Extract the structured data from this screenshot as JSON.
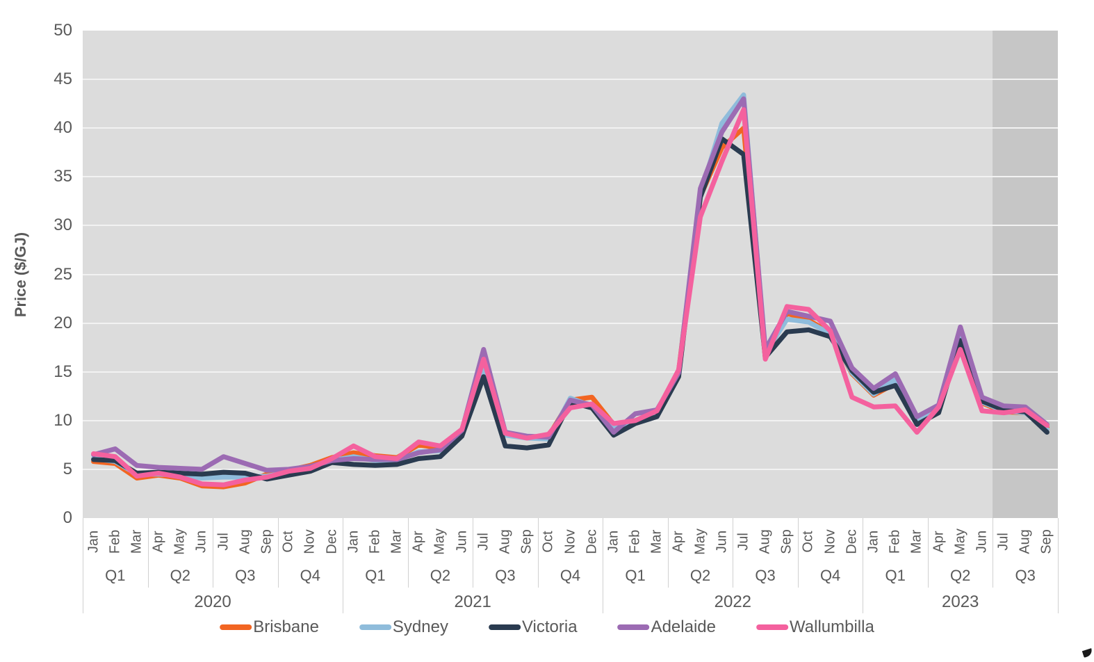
{
  "y_axis": {
    "title": "Price ($/GJ)",
    "tick_values": [
      0,
      5,
      10,
      15,
      20,
      25,
      30,
      35,
      40,
      45,
      50
    ],
    "text_color": "#595959"
  },
  "x_axis": {
    "years": [
      {
        "label": "2020",
        "quarters": [
          {
            "label": "Q1",
            "months": [
              "Jan",
              "Feb",
              "Mar"
            ]
          },
          {
            "label": "Q2",
            "months": [
              "Apr",
              "May",
              "Jun"
            ]
          },
          {
            "label": "Q3",
            "months": [
              "Jul",
              "Aug",
              "Sep"
            ]
          },
          {
            "label": "Q4",
            "months": [
              "Oct",
              "Nov",
              "Dec"
            ]
          }
        ]
      },
      {
        "label": "2021",
        "quarters": [
          {
            "label": "Q1",
            "months": [
              "Jan",
              "Feb",
              "Mar"
            ]
          },
          {
            "label": "Q2",
            "months": [
              "Apr",
              "May",
              "Jun"
            ]
          },
          {
            "label": "Q3",
            "months": [
              "Jul",
              "Aug",
              "Sep"
            ]
          },
          {
            "label": "Q4",
            "months": [
              "Oct",
              "Nov",
              "Dec"
            ]
          }
        ]
      },
      {
        "label": "2022",
        "quarters": [
          {
            "label": "Q1",
            "months": [
              "Jan",
              "Feb",
              "Mar"
            ]
          },
          {
            "label": "Q2",
            "months": [
              "Apr",
              "May",
              "Jun"
            ]
          },
          {
            "label": "Q3",
            "months": [
              "Jul",
              "Aug",
              "Sep"
            ]
          },
          {
            "label": "Q4",
            "months": [
              "Oct",
              "Nov",
              "Dec"
            ]
          }
        ]
      },
      {
        "label": "2023",
        "quarters": [
          {
            "label": "Q1",
            "months": [
              "Jan",
              "Feb",
              "Mar"
            ]
          },
          {
            "label": "Q2",
            "months": [
              "Apr",
              "May",
              "Jun"
            ]
          },
          {
            "label": "Q3",
            "months": [
              "Jul",
              "Aug",
              "Sep"
            ]
          }
        ]
      }
    ]
  },
  "legend": {
    "items": [
      {
        "label": "Brisbane",
        "color": "#f26522"
      },
      {
        "label": "Sydney",
        "color": "#8fbcdb"
      },
      {
        "label": "Victoria",
        "color": "#2a3b50"
      },
      {
        "label": "Adelaide",
        "color": "#9c6bb3"
      },
      {
        "label": "Wallumbilla",
        "color": "#f4619e"
      }
    ]
  },
  "plot": {
    "background_color": "#dcdcdc",
    "forecast_band_color": "#c6c6c6",
    "gridline_color": "#f2f2f2",
    "separator_color": "#d0d0d0",
    "forecast_band": {
      "start_month_index": 42,
      "end_month_index": 44
    }
  },
  "chart_data": {
    "type": "line",
    "title": "",
    "xlabel": "",
    "ylabel": "Price ($/GJ)",
    "ylim": [
      0,
      50
    ],
    "grid": true,
    "legend_position": "bottom",
    "x": [
      "Jan 2020",
      "Feb 2020",
      "Mar 2020",
      "Apr 2020",
      "May 2020",
      "Jun 2020",
      "Jul 2020",
      "Aug 2020",
      "Sep 2020",
      "Oct 2020",
      "Nov 2020",
      "Dec 2020",
      "Jan 2021",
      "Feb 2021",
      "Mar 2021",
      "Apr 2021",
      "May 2021",
      "Jun 2021",
      "Jul 2021",
      "Aug 2021",
      "Sep 2021",
      "Oct 2021",
      "Nov 2021",
      "Dec 2021",
      "Jan 2022",
      "Feb 2022",
      "Mar 2022",
      "Apr 2022",
      "May 2022",
      "Jun 2022",
      "Jul 2022",
      "Aug 2022",
      "Sep 2022",
      "Oct 2022",
      "Nov 2022",
      "Dec 2022",
      "Jan 2023",
      "Feb 2023",
      "Mar 2023",
      "Apr 2023",
      "May 2023",
      "Jun 2023",
      "Jul 2023",
      "Aug 2023",
      "Sep 2023"
    ],
    "shaded_region": {
      "from": "Jul 2023",
      "to": "Sep 2023",
      "meaning": "highlighted final quarter"
    },
    "series": [
      {
        "name": "Brisbane",
        "color": "#f26522",
        "values": [
          5.8,
          5.6,
          4.1,
          4.4,
          4.1,
          3.3,
          3.2,
          3.6,
          4.5,
          4.9,
          5.4,
          6.2,
          6.7,
          6.4,
          6.2,
          7.5,
          7.2,
          8.9,
          14.8,
          8.6,
          8.3,
          8.4,
          12.1,
          12.4,
          9.6,
          9.9,
          10.6,
          15.1,
          33.0,
          38.0,
          40.0,
          16.4,
          21.0,
          20.3,
          19.0,
          14.8,
          12.6,
          13.8,
          10.0,
          11.2,
          18.0,
          11.8,
          10.9,
          10.8,
          9.3
        ]
      },
      {
        "name": "Sydney",
        "color": "#8fbcdb",
        "values": [
          6.1,
          5.8,
          4.5,
          4.5,
          4.4,
          4.1,
          4.2,
          4.2,
          4.3,
          4.7,
          5.0,
          5.9,
          6.3,
          5.9,
          5.9,
          6.8,
          6.9,
          8.9,
          15.6,
          8.5,
          8.2,
          8.1,
          12.3,
          11.5,
          9.2,
          10.0,
          10.6,
          14.8,
          33.2,
          40.5,
          43.4,
          16.9,
          20.4,
          20.1,
          18.9,
          14.9,
          12.7,
          14.2,
          9.9,
          11.0,
          18.7,
          11.9,
          11.0,
          10.8,
          9.1
        ]
      },
      {
        "name": "Victoria",
        "color": "#2a3b50",
        "values": [
          6.0,
          5.9,
          4.6,
          4.7,
          4.6,
          4.5,
          4.7,
          4.6,
          4.0,
          4.4,
          4.8,
          5.7,
          5.5,
          5.4,
          5.5,
          6.1,
          6.3,
          8.4,
          14.5,
          7.4,
          7.2,
          7.5,
          11.9,
          11.3,
          8.5,
          9.7,
          10.4,
          14.5,
          32.9,
          38.9,
          37.3,
          16.5,
          19.1,
          19.3,
          18.6,
          15.1,
          12.9,
          13.6,
          9.6,
          10.8,
          18.2,
          12.0,
          11.1,
          10.9,
          8.8
        ]
      },
      {
        "name": "Adelaide",
        "color": "#9c6bb3",
        "values": [
          6.5,
          7.1,
          5.4,
          5.2,
          5.1,
          5.0,
          6.3,
          5.6,
          4.9,
          5.0,
          5.3,
          5.9,
          6.1,
          6.0,
          6.0,
          6.7,
          7.0,
          9.0,
          17.3,
          8.8,
          8.4,
          8.3,
          12.1,
          11.6,
          8.8,
          10.7,
          11.1,
          14.9,
          33.8,
          39.6,
          43.0,
          17.3,
          21.2,
          20.7,
          20.2,
          15.4,
          13.3,
          14.8,
          10.4,
          11.6,
          19.6,
          12.4,
          11.5,
          11.4,
          9.6
        ]
      },
      {
        "name": "Wallumbilla",
        "color": "#f4619e",
        "values": [
          6.6,
          6.3,
          4.3,
          4.6,
          4.2,
          3.5,
          3.4,
          3.9,
          4.2,
          4.8,
          5.1,
          6.1,
          7.4,
          6.3,
          6.1,
          7.8,
          7.4,
          9.1,
          16.3,
          8.7,
          8.2,
          8.6,
          11.3,
          11.7,
          9.7,
          10.0,
          11.0,
          15.2,
          30.9,
          36.6,
          41.9,
          16.3,
          21.7,
          21.4,
          19.2,
          12.4,
          11.4,
          11.5,
          8.8,
          11.4,
          17.3,
          11.0,
          10.8,
          11.1,
          9.5
        ]
      }
    ]
  }
}
